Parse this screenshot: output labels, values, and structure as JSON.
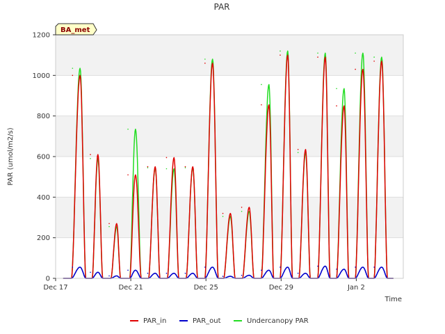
{
  "chart_data": {
    "type": "line",
    "title": "PAR",
    "xlabel": "Time",
    "ylabel": "PAR (umol/m2/s)",
    "badge": "BA_met",
    "xlim": [
      0,
      18.5
    ],
    "ylim": [
      0,
      1200
    ],
    "yticks": [
      0,
      200,
      400,
      600,
      800,
      1000,
      1200
    ],
    "xticks": [
      {
        "pos": 0,
        "label": "Dec 17"
      },
      {
        "pos": 4,
        "label": "Dec 21"
      },
      {
        "pos": 8,
        "label": "Dec 25"
      },
      {
        "pos": 12,
        "label": "Dec 29"
      },
      {
        "pos": 16,
        "label": "Jan 2"
      }
    ],
    "legend": [
      "PAR_in",
      "PAR_out",
      "Undercanopy PAR"
    ],
    "colors": {
      "PAR_in": "#e00000",
      "PAR_out": "#0000cc",
      "Undercanopy PAR": "#22dd22"
    },
    "days": [
      {
        "start": 0.45,
        "peak": 0.9,
        "end": 1.2,
        "in": 1000,
        "out": 55,
        "under": 1035
      },
      {
        "start": 1.55,
        "peak": 1.85,
        "end": 2.1,
        "in": 610,
        "out": 30,
        "under": 590
      },
      {
        "start": 2.55,
        "peak": 2.85,
        "end": 3.05,
        "in": 270,
        "out": 12,
        "under": 255
      },
      {
        "start": 3.55,
        "peak": 3.85,
        "end": 4.15,
        "in": 510,
        "out": 40,
        "under": 735
      },
      {
        "start": 4.55,
        "peak": 4.9,
        "end": 5.15,
        "in": 550,
        "out": 25,
        "under": 545
      },
      {
        "start": 5.55,
        "peak": 5.9,
        "end": 6.15,
        "in": 595,
        "out": 25,
        "under": 540
      },
      {
        "start": 6.55,
        "peak": 6.9,
        "end": 7.15,
        "in": 550,
        "out": 25,
        "under": 545
      },
      {
        "start": 7.55,
        "peak": 7.95,
        "end": 8.25,
        "in": 1060,
        "out": 55,
        "under": 1080
      },
      {
        "start": 8.55,
        "peak": 8.9,
        "end": 9.15,
        "in": 320,
        "out": 10,
        "under": 305
      },
      {
        "start": 9.55,
        "peak": 9.9,
        "end": 10.15,
        "in": 350,
        "out": 15,
        "under": 330
      },
      {
        "start": 10.55,
        "peak": 10.95,
        "end": 11.2,
        "in": 855,
        "out": 40,
        "under": 955
      },
      {
        "start": 11.55,
        "peak": 11.95,
        "end": 12.2,
        "in": 1100,
        "out": 55,
        "under": 1120
      },
      {
        "start": 12.55,
        "peak": 12.9,
        "end": 13.15,
        "in": 635,
        "out": 25,
        "under": 620
      },
      {
        "start": 13.55,
        "peak": 13.95,
        "end": 14.2,
        "in": 1090,
        "out": 60,
        "under": 1110
      },
      {
        "start": 14.55,
        "peak": 14.95,
        "end": 15.2,
        "in": 850,
        "out": 45,
        "under": 935
      },
      {
        "start": 15.55,
        "peak": 15.95,
        "end": 16.25,
        "in": 1030,
        "out": 55,
        "under": 1110
      },
      {
        "start": 16.55,
        "peak": 16.95,
        "end": 17.25,
        "in": 1070,
        "out": 55,
        "under": 1090
      }
    ]
  }
}
